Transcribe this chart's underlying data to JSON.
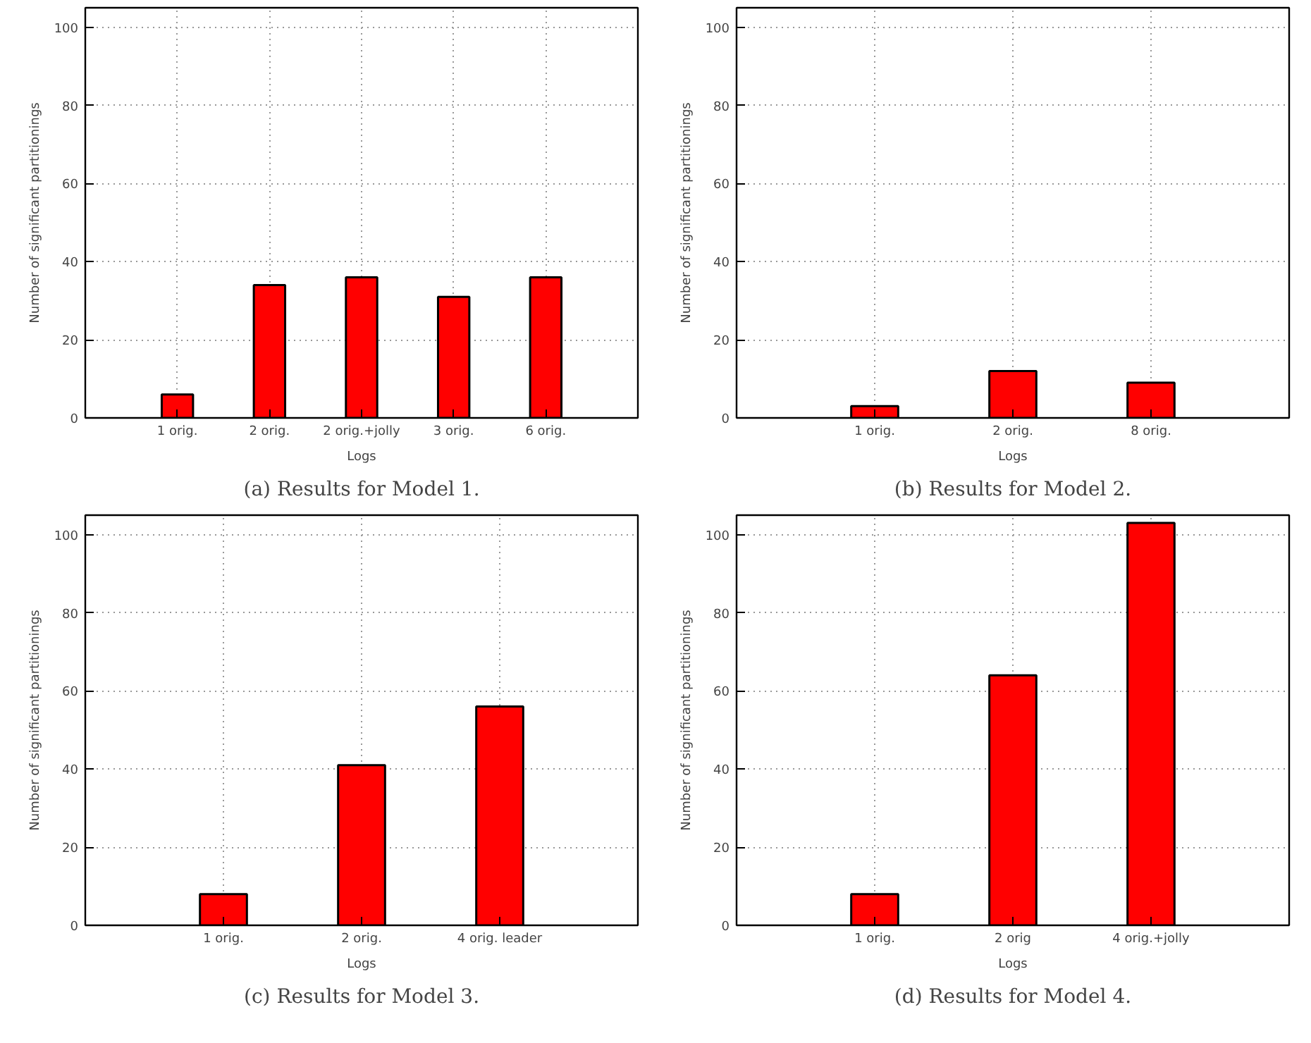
{
  "chart_data": [
    {
      "type": "bar",
      "categories": [
        "1 orig.",
        "2 orig.",
        "2 orig.+jolly",
        "3 orig.",
        "6 orig."
      ],
      "values": [
        6,
        34,
        36,
        31,
        36
      ],
      "color": "#ff0000",
      "xlabel": "Logs",
      "ylabel": "Number of significant partitionings",
      "ylim": [
        0,
        105
      ],
      "yticks": [
        0,
        20,
        40,
        60,
        80,
        100
      ],
      "grid": true,
      "annotations": [
        "(a) Results for Model 1."
      ]
    },
    {
      "type": "bar",
      "categories": [
        "1 orig.",
        "2 orig.",
        "8 orig."
      ],
      "values": [
        3,
        12,
        9
      ],
      "color": "#ff0000",
      "xlabel": "Logs",
      "ylabel": "Number of significant partitionings",
      "ylim": [
        0,
        105
      ],
      "yticks": [
        0,
        20,
        40,
        60,
        80,
        100
      ],
      "grid": true,
      "annotations": [
        "(b) Results for Model 2."
      ]
    },
    {
      "type": "bar",
      "categories": [
        "1 orig.",
        "2 orig.",
        "4 orig. leader"
      ],
      "values": [
        8,
        41,
        56
      ],
      "color": "#ff0000",
      "xlabel": "Logs",
      "ylabel": "Number of significant partitionings",
      "ylim": [
        0,
        105
      ],
      "yticks": [
        0,
        20,
        40,
        60,
        80,
        100
      ],
      "grid": true,
      "annotations": [
        "(c) Results for Model 3."
      ]
    },
    {
      "type": "bar",
      "categories": [
        "1 orig.",
        "2 orig",
        "4 orig.+jolly"
      ],
      "values": [
        8,
        64,
        103
      ],
      "color": "#ff0000",
      "xlabel": "Logs",
      "ylabel": "Number of significant partitionings",
      "ylim": [
        0,
        105
      ],
      "yticks": [
        0,
        20,
        40,
        60,
        80,
        100
      ],
      "grid": true,
      "annotations": [
        "(d) Results for Model 4."
      ]
    }
  ]
}
